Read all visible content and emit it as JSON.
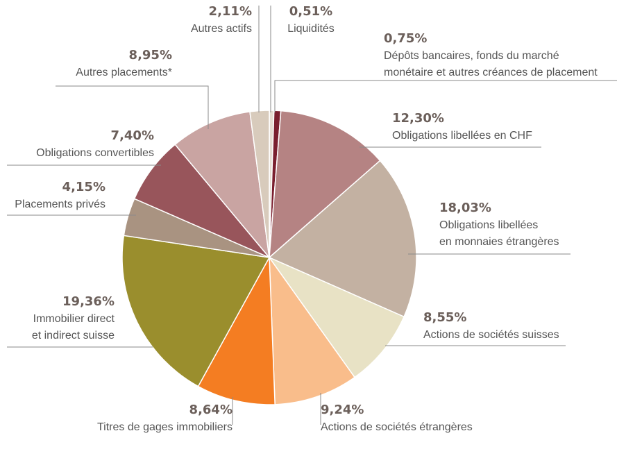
{
  "chart_data": {
    "type": "pie",
    "categories": [
      [
        "Liquidités"
      ],
      [
        "Dépôts bancaires, fonds du marché",
        "monétaire et autres créances de placement"
      ],
      [
        "Obligations libellées en CHF"
      ],
      [
        "Obligations libellées",
        "en monnaies étrangères"
      ],
      [
        "Actions de sociétés suisses"
      ],
      [
        "Actions de sociétés étrangères"
      ],
      [
        "Titres de gages immobiliers"
      ],
      [
        "Immobilier direct",
        "et indirect suisse"
      ],
      [
        "Placements privés"
      ],
      [
        "Obligations convertibles"
      ],
      [
        "Autres placements*"
      ],
      [
        "Autres actifs"
      ]
    ],
    "values": [
      0.51,
      0.75,
      12.3,
      18.03,
      8.55,
      9.24,
      8.64,
      19.36,
      4.15,
      7.4,
      8.95,
      2.11
    ],
    "value_labels": [
      "0,51%",
      "0,75%",
      "12,30%",
      "18,03%",
      "8,55%",
      "9,24%",
      "8,64%",
      "19,36%",
      "4,15%",
      "7,40%",
      "8,95%",
      "2,11%"
    ],
    "colors": [
      "#e6ddd2",
      "#7a1f2e",
      "#b58383",
      "#c3b1a2",
      "#e8e2c5",
      "#f9bd8b",
      "#f47d22",
      "#9a8e2d",
      "#a99381",
      "#98555b",
      "#c9a4a2",
      "#d8cbbc"
    ]
  }
}
